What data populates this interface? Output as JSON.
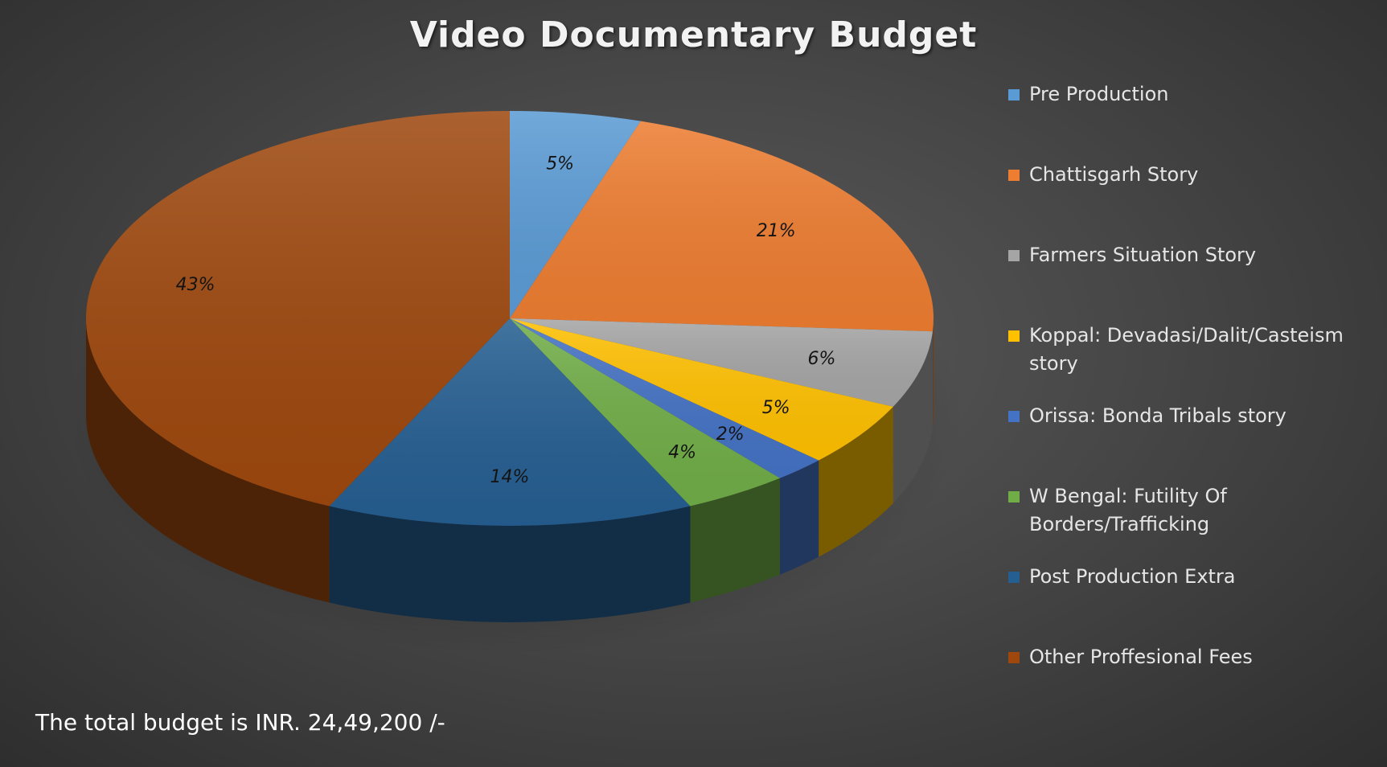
{
  "chart_data": {
    "type": "pie",
    "title": "Video Documentary Budget",
    "categories": [
      "Pre Production",
      "Chattisgarh Story",
      "Farmers Situation Story",
      "Koppal: Devadasi/Dalit/Casteism story",
      "Orissa: Bonda Tribals story",
      "W Bengal: Futility Of Borders/Trafficking",
      "Post Production Extra",
      "Other Proffesional Fees"
    ],
    "values": [
      5,
      21,
      6,
      5,
      2,
      4,
      14,
      43
    ],
    "data_labels": [
      "5%",
      "21%",
      "6%",
      "5%",
      "2%",
      "4%",
      "14%",
      "43%"
    ],
    "colors": [
      "#5b9bd5",
      "#ed7d31",
      "#a5a5a5",
      "#ffc000",
      "#4472c4",
      "#70ad47",
      "#255e91",
      "#9e480e"
    ],
    "legend_position": "right",
    "style": "3d"
  },
  "footer": {
    "note": "The total budget is INR. 24,49,200 /-"
  }
}
